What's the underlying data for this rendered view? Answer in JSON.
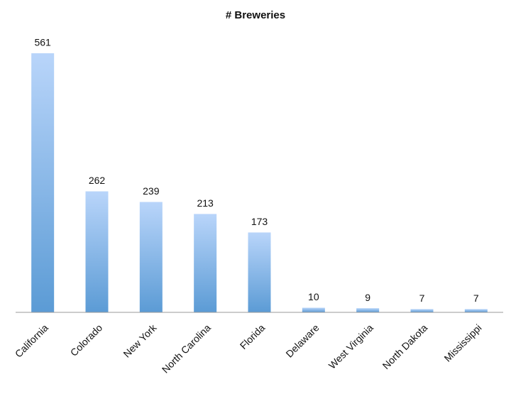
{
  "chart_data": {
    "type": "bar",
    "title": "# Breweries",
    "categories": [
      "California",
      "Colorado",
      "New York",
      "North Carolina",
      "Florida",
      "Delaware",
      "West Virginia",
      "North Dakota",
      "Mississippi"
    ],
    "values": [
      561,
      262,
      239,
      213,
      173,
      10,
      9,
      7,
      7
    ],
    "color": "#5b9bd5"
  }
}
